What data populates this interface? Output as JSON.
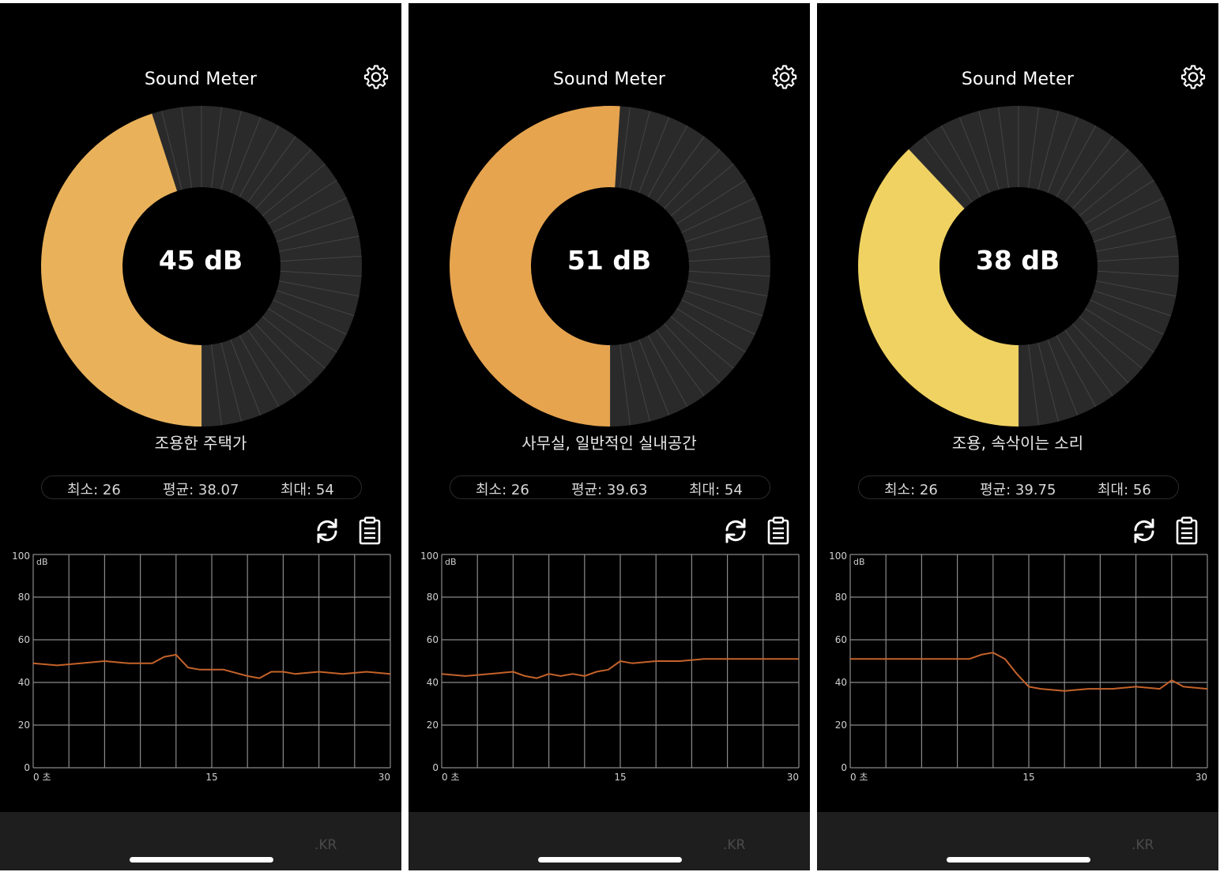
{
  "colors": {
    "background": "#000000",
    "segment_empty": "#2a2a2a",
    "segment_line": "#444444",
    "grid": "#8a8a8a",
    "trace": "#c4622a"
  },
  "icons": {
    "settings": "gear-icon",
    "refresh": "refresh-icon",
    "clipboard": "clipboard-icon"
  },
  "screens": [
    {
      "title": "Sound Meter",
      "db_reading": "45 dB",
      "level": 45,
      "fill_color": "#e9b25a",
      "level_description": "조용한 주택가",
      "stats": {
        "min": "최소: 26",
        "avg": "평균: 38.07",
        "max": "최대: 54"
      },
      "bottom_label": ".KR"
    },
    {
      "title": "Sound Meter",
      "db_reading": "51 dB",
      "level": 51,
      "fill_color": "#e6a44f",
      "level_description": "사무실, 일반적인 실내공간",
      "stats": {
        "min": "최소: 26",
        "avg": "평균: 39.63",
        "max": "최대: 54"
      },
      "bottom_label": ".KR"
    },
    {
      "title": "Sound Meter",
      "db_reading": "38 dB",
      "level": 38,
      "fill_color": "#f0d262",
      "level_description": "조용, 속삭이는 소리",
      "stats": {
        "min": "최소: 26",
        "avg": "평균: 39.75",
        "max": "최대: 56"
      },
      "bottom_label": ".KR"
    }
  ],
  "chart_data": [
    {
      "type": "line",
      "ylabel": "dB",
      "ylim": [
        0,
        100
      ],
      "xlim": [
        0,
        30
      ],
      "y_ticks": [
        "0",
        "20",
        "40",
        "60",
        "80",
        "100"
      ],
      "x_ticks": [
        "0 초",
        "15",
        "30"
      ],
      "grid": true,
      "x": [
        0,
        2,
        4,
        6,
        8,
        10,
        11,
        12,
        13,
        14,
        16,
        18,
        19,
        20,
        21,
        22,
        24,
        26,
        28,
        30
      ],
      "y": [
        49,
        48,
        49,
        50,
        49,
        49,
        52,
        53,
        47,
        46,
        46,
        43,
        42,
        45,
        45,
        44,
        45,
        44,
        45,
        44
      ]
    },
    {
      "type": "line",
      "ylabel": "dB",
      "ylim": [
        0,
        100
      ],
      "xlim": [
        0,
        30
      ],
      "y_ticks": [
        "0",
        "20",
        "40",
        "60",
        "80",
        "100"
      ],
      "x_ticks": [
        "0 초",
        "15",
        "30"
      ],
      "grid": true,
      "x": [
        0,
        2,
        4,
        6,
        7,
        8,
        9,
        10,
        11,
        12,
        13,
        14,
        15,
        16,
        18,
        20,
        22,
        24,
        26,
        28,
        30
      ],
      "y": [
        44,
        43,
        44,
        45,
        43,
        42,
        44,
        43,
        44,
        43,
        45,
        46,
        50,
        49,
        50,
        50,
        51,
        51,
        51,
        51,
        51
      ]
    },
    {
      "type": "line",
      "ylabel": "dB",
      "ylim": [
        0,
        100
      ],
      "xlim": [
        0,
        30
      ],
      "y_ticks": [
        "0",
        "20",
        "40",
        "60",
        "80",
        "100"
      ],
      "x_ticks": [
        "0 초",
        "15",
        "30"
      ],
      "grid": true,
      "x": [
        0,
        2,
        4,
        6,
        8,
        10,
        11,
        12,
        13,
        14,
        15,
        16,
        18,
        20,
        22,
        24,
        26,
        27,
        28,
        30
      ],
      "y": [
        51,
        51,
        51,
        51,
        51,
        51,
        53,
        54,
        51,
        44,
        38,
        37,
        36,
        37,
        37,
        38,
        37,
        41,
        38,
        37
      ]
    }
  ]
}
